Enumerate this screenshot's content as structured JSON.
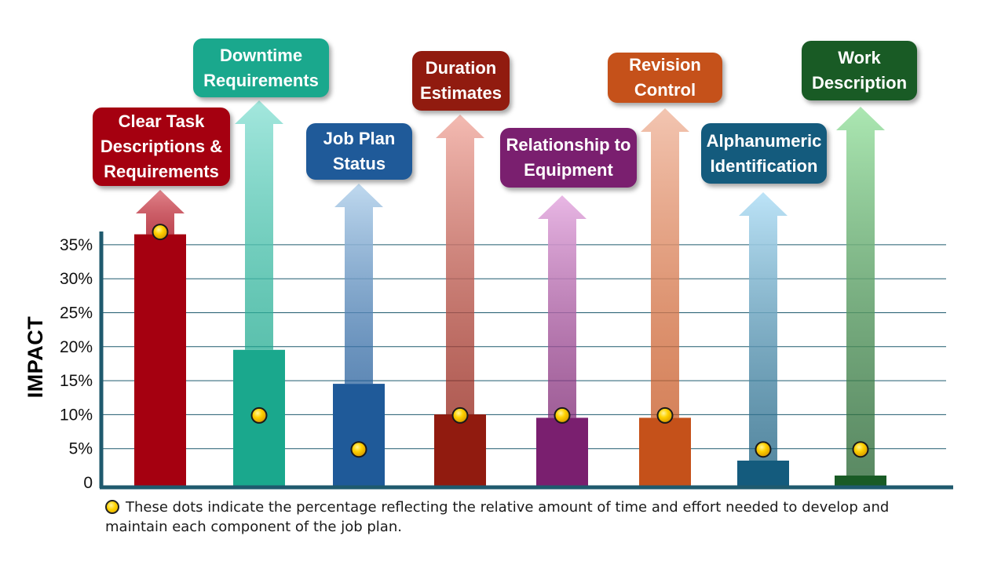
{
  "chart_data": {
    "type": "bar",
    "ylabel": "IMPACT",
    "ylim": [
      0,
      37
    ],
    "yticks": [
      "0",
      "5%",
      "10%",
      "15%",
      "20%",
      "25%",
      "30%",
      "35%"
    ],
    "ytick_values": [
      0,
      5,
      10,
      15,
      20,
      25,
      30,
      35
    ],
    "categories": [
      "Clear Task\nDescriptions &\nRequirements",
      "Downtime\nRequirements",
      "Job Plan\nStatus",
      "Duration\nEstimates",
      "Relationship to\nEquipment",
      "Revision\nControl",
      "Alphanumeric\nIdentification",
      "Work\nDescription"
    ],
    "series": [
      {
        "name": "Impact",
        "values": [
          37,
          20,
          15,
          10.5,
          10,
          10,
          3.7,
          1.5
        ]
      },
      {
        "name": "Time and effort (dots)",
        "values": [
          37,
          10,
          5,
          10,
          10,
          10,
          5,
          5
        ]
      }
    ],
    "colors": [
      "#a50010",
      "#1aa88d",
      "#1f5a99",
      "#911b0f",
      "#7a1f6f",
      "#c5511a",
      "#145b7d",
      "#195b25"
    ],
    "arrow_colors": [
      "#e07f86",
      "#9fe6dc",
      "#bcd7ee",
      "#f3b7ae",
      "#e7b3e3",
      "#f2c2ad",
      "#b9e2f7",
      "#a7e6ae"
    ],
    "legend_text": "These dots indicate the percentage reflecting the relative amount of time and effort needed to develop and maintain each component of the job plan."
  }
}
